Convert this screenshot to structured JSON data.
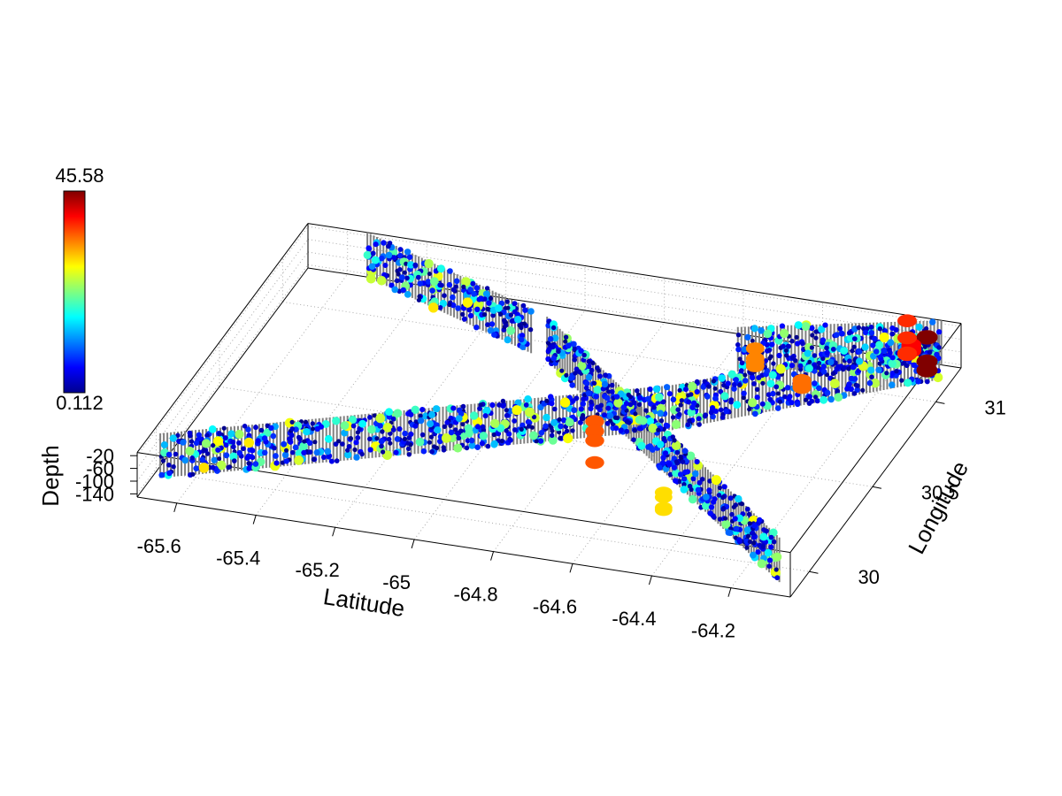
{
  "chart_data": {
    "type": "scatter",
    "dimensions": 3,
    "xlabel": "Latitude",
    "ylabel": "Longitude",
    "zlabel": "Depth",
    "xlim": [
      -65.7,
      -64.05
    ],
    "ylim": [
      29.85,
      31.2
    ],
    "zlim": [
      -150,
      -10
    ],
    "x_ticks": [
      "-65.6",
      "-65.4",
      "-65.2",
      "-65",
      "-64.8",
      "-64.6",
      "-64.4",
      "-64.2"
    ],
    "y_ticks": [
      "30",
      "30.5",
      "31"
    ],
    "z_ticks": [
      "-20",
      "-60",
      "-100",
      "-140"
    ],
    "colorbar": {
      "max_label": "45.58",
      "min_label": "0.112",
      "min": 0.112,
      "max": 45.58,
      "colormap": "jet"
    },
    "grid": true,
    "track_color": "#808080",
    "transects": [
      {
        "name": "",
        "start": [
          -65.68,
          29.97
        ],
        "end": [
          -64.6,
          30.64
        ]
      },
      {
        "name": "",
        "start": [
          -64.6,
          30.64
        ],
        "end": [
          -64.08,
          31.12
        ]
      },
      {
        "name": "",
        "start": [
          -65.55,
          31.2
        ],
        "end": [
          -65.05,
          30.93
        ]
      },
      {
        "name": "",
        "start": [
          -65.0,
          30.9
        ],
        "end": [
          -64.1,
          29.92
        ]
      },
      {
        "name": "",
        "start": [
          -64.55,
          31.0
        ],
        "end": [
          -64.1,
          31.2
        ]
      }
    ],
    "hotspots": [
      {
        "lat": -64.12,
        "lon": 31.15,
        "value": 45.58
      },
      {
        "lat": -64.15,
        "lon": 31.12,
        "value": 40
      },
      {
        "lat": -64.18,
        "lon": 31.18,
        "value": 38
      },
      {
        "lat": -64.72,
        "lon": 30.4,
        "value": 36
      },
      {
        "lat": -64.5,
        "lon": 30.98,
        "value": 34
      },
      {
        "lat": -64.35,
        "lon": 30.88,
        "value": 35
      },
      {
        "lat": -64.45,
        "lon": 30.1,
        "value": 30
      }
    ]
  }
}
